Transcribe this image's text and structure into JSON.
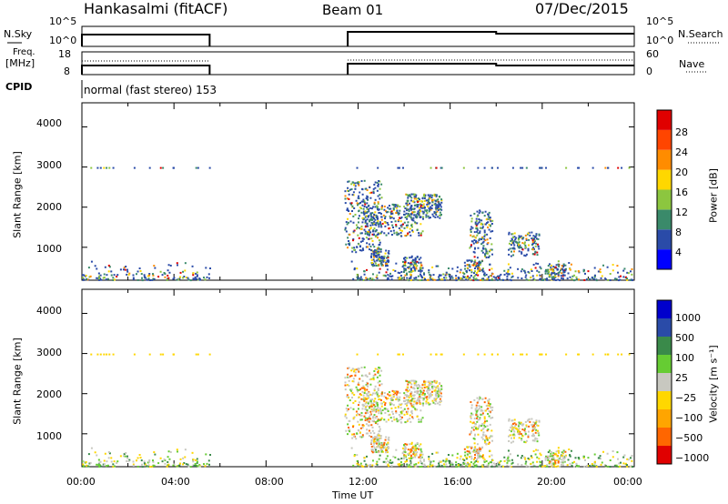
{
  "header": {
    "station": "Hankasalmi (fitACF)",
    "beam": "Beam 01",
    "date": "07/Dec/2015"
  },
  "panels": {
    "nsky": {
      "label": "N.Sky",
      "ticks": [
        "10^5",
        "10^0"
      ],
      "right_label": "N.Search",
      "right_ticks": [
        "10^5",
        "10^0"
      ]
    },
    "freq": {
      "label_line1": "Freq.",
      "label_line2": "[MHz]",
      "ticks": [
        "18",
        "8"
      ],
      "right_label": "Nave",
      "right_ticks": [
        "60",
        "0"
      ]
    },
    "cpid": {
      "label": "CPID",
      "text": "normal (fast stereo) 153"
    }
  },
  "colors": {
    "power_scale": [
      "#0000ff",
      "#2a4ba8",
      "#3a8a6a",
      "#8cc63f",
      "#ffd700",
      "#ff8c00",
      "#ff4500",
      "#e00000"
    ],
    "velocity_scale": [
      "#0000cc",
      "#2a4ba8",
      "#3a8a4a",
      "#66cc33",
      "#c8c8c0",
      "#ffd700",
      "#ffa500",
      "#ff6600",
      "#e00000"
    ]
  },
  "chart_data": [
    {
      "type": "heatmap",
      "name": "power",
      "ylabel": "Slant Range [km]",
      "y_ticks": [
        "4000",
        "3000",
        "2000",
        "1000"
      ],
      "ylim": [
        180,
        4600
      ],
      "colorbar_label": "Power [dB]",
      "colorbar_ticks": [
        "28",
        "24",
        "20",
        "16",
        "12",
        "8",
        "4"
      ],
      "colorbar_range": [
        0,
        32
      ]
    },
    {
      "type": "heatmap",
      "name": "velocity",
      "ylabel": "Slant Range [km]",
      "y_ticks": [
        "4000",
        "3000",
        "2000",
        "1000"
      ],
      "ylim": [
        180,
        4600
      ],
      "colorbar_label": "Velocity [m s⁻¹]",
      "colorbar_ticks": [
        "1000",
        "500",
        "100",
        "25",
        "−25",
        "−100",
        "−500",
        "−1000"
      ]
    },
    {
      "type": "line",
      "name": "time-axis",
      "xlabel": "Time UT",
      "x_ticks": [
        "00:00",
        "04:00",
        "08:00",
        "12:00",
        "16:00",
        "20:00",
        "00:00"
      ],
      "xlim_hours": [
        0,
        24
      ],
      "data_gaps_hours": [
        [
          5.55,
          11.55
        ]
      ]
    }
  ]
}
